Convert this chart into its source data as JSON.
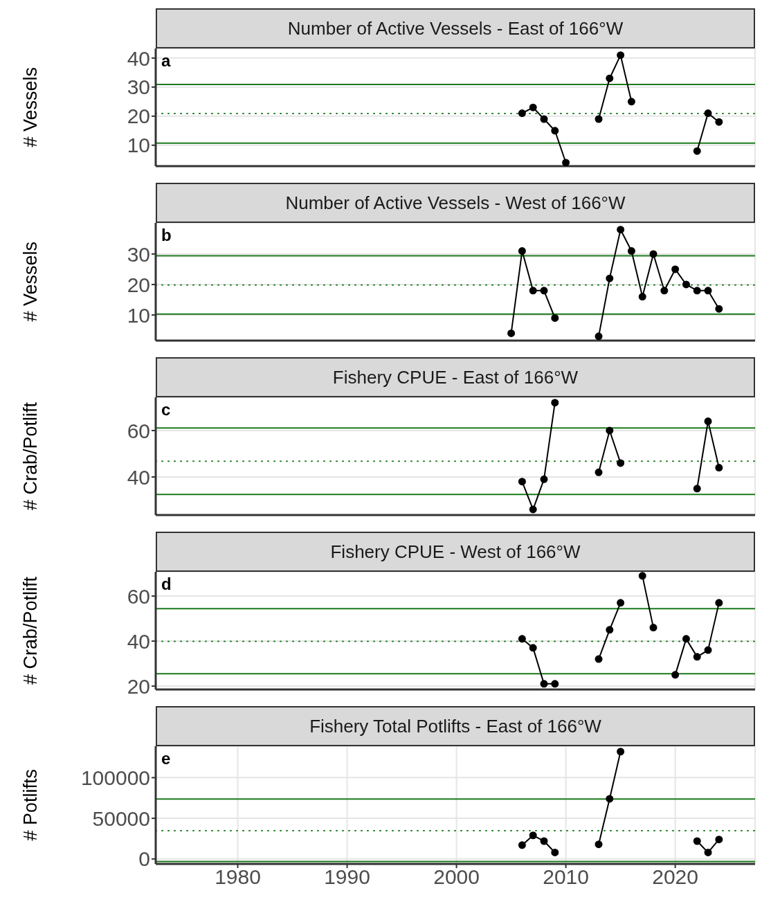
{
  "chart_data": [
    {
      "type": "line",
      "title": "Number of Active Vessels - East of 166°W",
      "ylabel": "# Vessels",
      "annotations": [
        "a"
      ],
      "x": [
        2006,
        2007,
        2008,
        2009,
        2010,
        2011,
        2012,
        2013,
        2014,
        2015,
        2016,
        2017,
        2018,
        2019,
        2020,
        2021,
        2022,
        2023,
        2024
      ],
      "series": [
        {
          "color": "#000000",
          "values": [
            21,
            23,
            19,
            15,
            4,
            null,
            null,
            19,
            33,
            41,
            25,
            null,
            null,
            null,
            null,
            null,
            8,
            21,
            18
          ]
        }
      ],
      "xlim": [
        1972.5,
        2027.3
      ],
      "xticks": [
        1980,
        1990,
        2000,
        2010,
        2020
      ],
      "ylim": [
        2.8,
        43.3
      ],
      "yticks": [
        10,
        20,
        30,
        40
      ],
      "grid": true,
      "marker": "circle",
      "line_style": "solid",
      "tick_labels": "y",
      "ref_lines": [
        {
          "axis": "y",
          "value": 30.9,
          "color": "#1a7a1a",
          "line_style": "solid"
        },
        {
          "axis": "y",
          "value": 20.9,
          "color": "#1a7a1a",
          "line_style": "dotted"
        },
        {
          "axis": "y",
          "value": 10.7,
          "color": "#1a7a1a",
          "line_style": "solid"
        }
      ]
    },
    {
      "type": "line",
      "title": "Number of Active Vessels - West of 166°W",
      "ylabel": "# Vessels",
      "annotations": [
        "b"
      ],
      "x": [
        2005,
        2006,
        2007,
        2008,
        2009,
        2010,
        2011,
        2012,
        2013,
        2014,
        2015,
        2016,
        2017,
        2018,
        2019,
        2020,
        2021,
        2022,
        2023,
        2024
      ],
      "series": [
        {
          "color": "#000000",
          "values": [
            4,
            31,
            18,
            18,
            9,
            null,
            null,
            null,
            3,
            22,
            38,
            31,
            16,
            30,
            18,
            25,
            20,
            18,
            18,
            12
          ]
        }
      ],
      "xlim": [
        1972.5,
        2027.3
      ],
      "xticks": [
        1980,
        1990,
        2000,
        2010,
        2020
      ],
      "ylim": [
        1.6,
        40.2
      ],
      "yticks": [
        10,
        20,
        30
      ],
      "grid": true,
      "marker": "circle",
      "line_style": "solid",
      "tick_labels": "y",
      "ref_lines": [
        {
          "axis": "y",
          "value": 29.4,
          "color": "#1a7a1a",
          "line_style": "solid"
        },
        {
          "axis": "y",
          "value": 19.8,
          "color": "#1a7a1a",
          "line_style": "dotted"
        },
        {
          "axis": "y",
          "value": 10.3,
          "color": "#1a7a1a",
          "line_style": "solid"
        }
      ]
    },
    {
      "type": "line",
      "title": "Fishery CPUE - East of 166°W",
      "ylabel": "# Crab/Potlift",
      "annotations": [
        "c"
      ],
      "x": [
        2006,
        2007,
        2008,
        2009,
        2010,
        2011,
        2012,
        2013,
        2014,
        2015,
        2016,
        2017,
        2018,
        2019,
        2020,
        2021,
        2022,
        2023,
        2024
      ],
      "series": [
        {
          "color": "#000000",
          "values": [
            38,
            26,
            39,
            72,
            null,
            null,
            null,
            42,
            60,
            46,
            null,
            null,
            null,
            null,
            null,
            null,
            35,
            64,
            44
          ]
        }
      ],
      "xlim": [
        1972.5,
        2027.3
      ],
      "xticks": [
        1980,
        1990,
        2000,
        2010,
        2020
      ],
      "ylim": [
        23.6,
        74.3
      ],
      "yticks": [
        40,
        60
      ],
      "grid": true,
      "marker": "circle",
      "line_style": "solid",
      "tick_labels": "y",
      "ref_lines": [
        {
          "axis": "y",
          "value": 61.1,
          "color": "#1a7a1a",
          "line_style": "solid"
        },
        {
          "axis": "y",
          "value": 46.8,
          "color": "#1a7a1a",
          "line_style": "dotted"
        },
        {
          "axis": "y",
          "value": 32.5,
          "color": "#1a7a1a",
          "line_style": "solid"
        }
      ]
    },
    {
      "type": "line",
      "title": "Fishery CPUE - West of 166°W",
      "ylabel": "# Crab/Potlift",
      "annotations": [
        "d"
      ],
      "x": [
        2006,
        2007,
        2008,
        2009,
        2010,
        2011,
        2012,
        2013,
        2014,
        2015,
        2016,
        2017,
        2018,
        2019,
        2020,
        2021,
        2022,
        2023,
        2024
      ],
      "series": [
        {
          "color": "#000000",
          "values": [
            41,
            37,
            21,
            21,
            null,
            null,
            null,
            32,
            45,
            57,
            null,
            69,
            46,
            null,
            25,
            41,
            33,
            36,
            57
          ]
        }
      ],
      "xlim": [
        1972.5,
        2027.3
      ],
      "xticks": [
        1980,
        1990,
        2000,
        2010,
        2020
      ],
      "ylim": [
        18.5,
        70.8
      ],
      "yticks": [
        20,
        40,
        60
      ],
      "grid": true,
      "marker": "circle",
      "line_style": "solid",
      "tick_labels": "y",
      "ref_lines": [
        {
          "axis": "y",
          "value": 54.4,
          "color": "#1a7a1a",
          "line_style": "solid"
        },
        {
          "axis": "y",
          "value": 39.9,
          "color": "#1a7a1a",
          "line_style": "dotted"
        },
        {
          "axis": "y",
          "value": 25.5,
          "color": "#1a7a1a",
          "line_style": "solid"
        }
      ]
    },
    {
      "type": "line",
      "title": "Fishery Total Potlifts - East of 166°W",
      "ylabel": "# Potlifts",
      "annotations": [
        "e"
      ],
      "x": [
        2006,
        2007,
        2008,
        2009,
        2010,
        2011,
        2012,
        2013,
        2014,
        2015,
        2016,
        2017,
        2018,
        2019,
        2020,
        2021,
        2022,
        2023,
        2024
      ],
      "series": [
        {
          "color": "#000000",
          "values": [
            17000,
            29000,
            22000,
            8000,
            null,
            null,
            null,
            18000,
            74000,
            132000,
            null,
            null,
            null,
            null,
            null,
            null,
            22000,
            8000,
            24000
          ]
        }
      ],
      "xlim": [
        1972.5,
        2027.3
      ],
      "xticks": [
        1980,
        1990,
        2000,
        2010,
        2020
      ],
      "ylim": [
        -6100,
        138600
      ],
      "yticks": [
        0,
        50000,
        100000
      ],
      "grid": true,
      "marker": "circle",
      "line_style": "solid",
      "ref_lines": [
        {
          "axis": "y",
          "value": 73700,
          "color": "#1a7a1a",
          "line_style": "solid"
        },
        {
          "axis": "y",
          "value": 34800,
          "color": "#1a7a1a",
          "line_style": "dotted"
        },
        {
          "axis": "y",
          "value": -3200,
          "color": "#1a7a1a",
          "line_style": "solid"
        }
      ]
    }
  ]
}
